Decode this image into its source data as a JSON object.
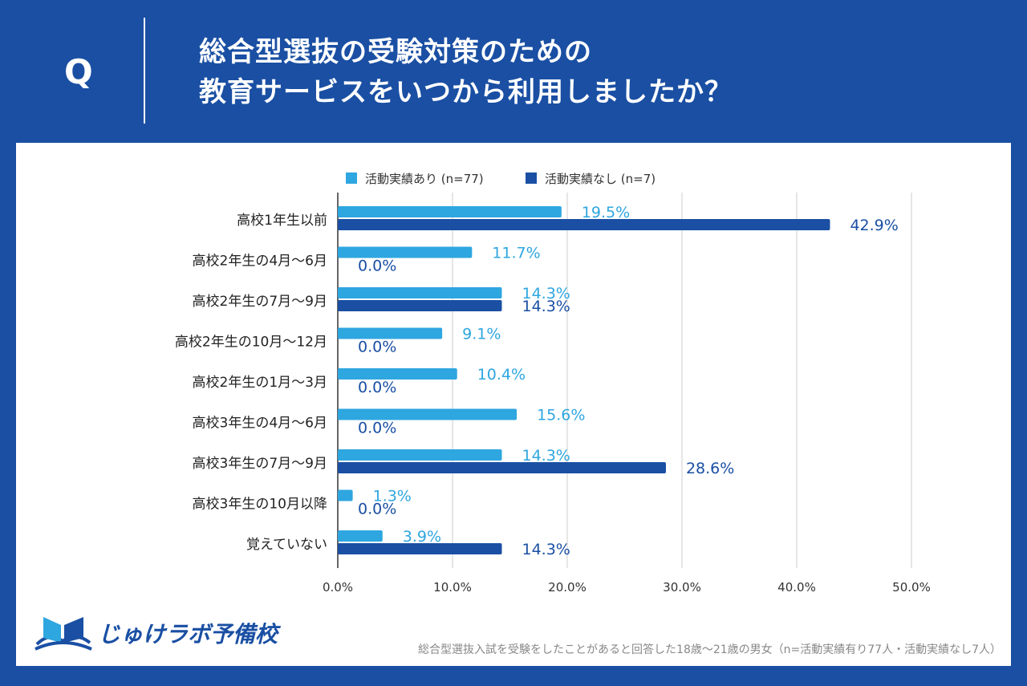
{
  "header": {
    "q_mark": "Q",
    "title_line1": "総合型選抜の受験対策のための",
    "title_line2": "教育サービスをいつから利用しましたか？"
  },
  "colors": {
    "background": "#1a4fa3",
    "series_light": "#2ea6e0",
    "series_dark": "#1a4fa3",
    "grid": "#cccccc"
  },
  "chart_data": {
    "type": "bar",
    "orientation": "horizontal",
    "categories": [
      "高校1年生以前",
      "高校2年生の4月〜6月",
      "高校2年生の7月〜9月",
      "高校2年生の10月〜12月",
      "高校2年生の1月〜3月",
      "高校3年生の4月〜6月",
      "高校3年生の7月〜9月",
      "高校3年生の10月以降",
      "覚えていない"
    ],
    "series": [
      {
        "name": "活動実績あり (n=77)",
        "values": [
          19.5,
          11.7,
          14.3,
          9.1,
          10.4,
          15.6,
          14.3,
          1.3,
          3.9
        ],
        "color": "#2ea6e0"
      },
      {
        "name": "活動実績なし (n=7)",
        "values": [
          42.9,
          0.0,
          14.3,
          0.0,
          0.0,
          0.0,
          28.6,
          0.0,
          14.3
        ],
        "color": "#1a4fa3"
      }
    ],
    "xlim": [
      0,
      50
    ],
    "x_ticks": [
      0,
      10,
      20,
      30,
      40,
      50
    ],
    "tick_suffix": "%",
    "value_suffix": "%",
    "legend_position": "top",
    "grid": true
  },
  "logo": {
    "text": "じゅけラボ予備校"
  },
  "footnote": "総合型選抜入試を受験をしたことがあると回答した18歳〜21歳の男女（n=活動実績有り77人・活動実績なし7人）"
}
